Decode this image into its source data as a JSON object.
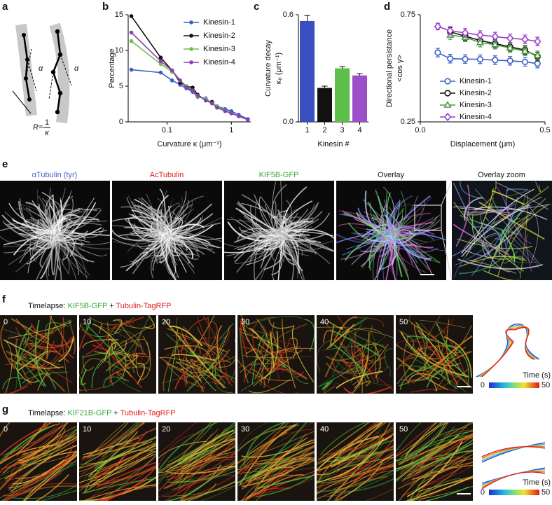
{
  "panel_letters": [
    "a",
    "b",
    "c",
    "d",
    "e",
    "f",
    "g"
  ],
  "diagram": {
    "alpha_left": "α",
    "alpha_right": "α",
    "radius": "R=",
    "numerator": "1",
    "denominator": "κ"
  },
  "chart_data": [
    {
      "type": "line",
      "xlabel": "Curvature κ (μm⁻¹)",
      "ylabel": [
        "Percentage"
      ],
      "xscale": "log",
      "xlim": [
        0.025,
        2
      ],
      "xticks": [
        0.1,
        1
      ],
      "ylim": [
        0,
        15
      ],
      "yticks": [
        0,
        5,
        10,
        15
      ],
      "legend": "upper right",
      "x": [
        0.028,
        0.08,
        0.12,
        0.16,
        0.2,
        0.25,
        0.3,
        0.4,
        0.5,
        0.6,
        0.8,
        1.0,
        1.3,
        1.8
      ],
      "series": [
        {
          "name": "Kinesin-1",
          "color": "#3a5fc8",
          "marker": "dot",
          "values": [
            7.3,
            6.9,
            5.8,
            5.2,
            4.7,
            4.2,
            3.5,
            3.3,
            2.6,
            2.2,
            1.8,
            1.5,
            1.0,
            0.4
          ]
        },
        {
          "name": "Kinesin-2",
          "color": "#111111",
          "marker": "dot",
          "values": [
            14.8,
            9.0,
            7.2,
            5.5,
            5.0,
            4.8,
            3.8,
            3.0,
            2.8,
            2.0,
            1.6,
            1.2,
            0.8,
            0.3
          ]
        },
        {
          "name": "Kinesin-3",
          "color": "#6cc24a",
          "marker": "dot",
          "values": [
            11.3,
            8.1,
            7.0,
            5.8,
            5.0,
            4.4,
            3.6,
            3.2,
            2.6,
            2.2,
            1.6,
            1.2,
            0.8,
            0.3
          ]
        },
        {
          "name": "Kinesin-4",
          "color": "#8b3fb0",
          "marker": "dot",
          "values": [
            12.5,
            8.5,
            7.2,
            5.8,
            4.8,
            4.4,
            3.7,
            3.0,
            2.6,
            2.0,
            1.5,
            1.2,
            0.8,
            0.3
          ]
        }
      ]
    },
    {
      "type": "bar",
      "xlabel": "Kinesin #",
      "ylabel": [
        "Curvature decay",
        "κ₀ (μm⁻¹)"
      ],
      "categories": [
        "1",
        "2",
        "3",
        "4"
      ],
      "values": [
        0.565,
        0.19,
        0.3,
        0.26
      ],
      "errors": [
        0.03,
        0.01,
        0.01,
        0.01
      ],
      "colors": [
        "#3a4fc0",
        "#111111",
        "#5cbf4a",
        "#9b4fc9"
      ],
      "ylim": [
        0,
        0.6
      ],
      "yticks": [
        {
          "value": 0,
          "label": "0.0"
        },
        0.6
      ]
    },
    {
      "type": "line",
      "xlabel": "Displacement (μm)",
      "ylabel": [
        "Directional persistance",
        "<cos γ>"
      ],
      "xlim": [
        0,
        0.5
      ],
      "xticks": [
        {
          "value": 0,
          "label": "0.0"
        },
        0.5
      ],
      "ylim": [
        0.25,
        0.75
      ],
      "yticks": [
        0.25,
        0.75
      ],
      "legend": "lower left",
      "x": [
        0.07,
        0.12,
        0.18,
        0.24,
        0.3,
        0.36,
        0.42,
        0.47
      ],
      "series": [
        {
          "name": "Kinesin-1",
          "color": "#3a5fc8",
          "marker": "circle",
          "values": [
            0.573,
            0.545,
            0.543,
            0.542,
            0.538,
            0.535,
            0.53,
            0.522
          ],
          "errors": [
            0.02,
            0.02,
            0.02,
            0.02,
            0.02,
            0.02,
            0.02,
            0.02
          ]
        },
        {
          "name": "Kinesin-2",
          "color": "#111111",
          "marker": "circle",
          "values": [
            null,
            0.67,
            0.65,
            0.63,
            0.615,
            0.6,
            0.585,
            0.555
          ],
          "errors": [
            null,
            0.02,
            0.02,
            0.02,
            0.02,
            0.02,
            0.02,
            0.02
          ]
        },
        {
          "name": "Kinesin-3",
          "color": "#4a9a3a",
          "marker": "triangle",
          "values": [
            null,
            0.655,
            0.645,
            0.62,
            0.61,
            0.595,
            0.58,
            0.56
          ],
          "errors": [
            null,
            0.02,
            0.02,
            0.02,
            0.02,
            0.02,
            0.02,
            0.02
          ]
        },
        {
          "name": "Kinesin-4",
          "color": "#9b3fc9",
          "marker": "diamond",
          "values": [
            0.695,
            0.675,
            0.665,
            0.655,
            0.648,
            0.64,
            0.635,
            0.625
          ],
          "errors": [
            0.015,
            0.02,
            0.02,
            0.02,
            0.02,
            0.02,
            0.02,
            0.02
          ]
        }
      ]
    }
  ],
  "panel_e": {
    "labels": [
      {
        "text": "αTubulin (tyr)",
        "color": "#4a5fc8"
      },
      {
        "text": "AcTubulin",
        "color": "#e02020"
      },
      {
        "text": "KIF5B-GFP",
        "color": "#3aa83a"
      },
      {
        "text": "Overlay",
        "color": "#111111"
      },
      {
        "text": "Overlay zoom",
        "color": "#111111"
      }
    ]
  },
  "panel_f": {
    "title": [
      {
        "text": "Timelapse: ",
        "color": "#111111"
      },
      {
        "text": "KIF5B-GFP",
        "color": "#3aa83a"
      },
      {
        "text": " + ",
        "color": "#111111"
      },
      {
        "text": "Tubulin-TagRFP",
        "color": "#e02020"
      }
    ],
    "times": [
      "0",
      "10",
      "20",
      "30",
      "40",
      "50"
    ],
    "colorbar": {
      "title": "Time (s)",
      "min": "0",
      "max": "50"
    }
  },
  "panel_g": {
    "title": [
      {
        "text": "Timelapse: ",
        "color": "#111111"
      },
      {
        "text": "KIF21B-GFP",
        "color": "#3aa83a"
      },
      {
        "text": " + ",
        "color": "#111111"
      },
      {
        "text": "Tubulin-TagRFP",
        "color": "#e02020"
      }
    ],
    "times": [
      "0",
      "10",
      "20",
      "30",
      "40",
      "50"
    ],
    "colorbar": {
      "title": "Time (s)",
      "min": "0",
      "max": "50"
    }
  }
}
